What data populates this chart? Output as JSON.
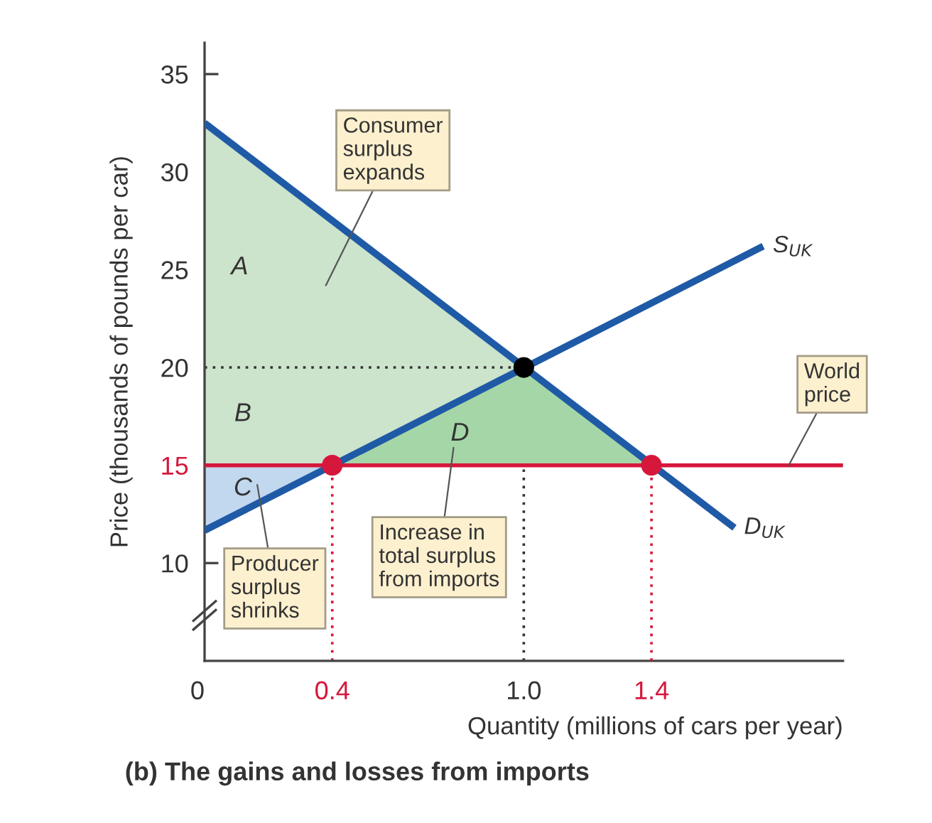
{
  "chart_data": {
    "type": "line",
    "title": "(b) The gains and losses from imports",
    "xlabel": "Quantity (millions of cars per year)",
    "ylabel": "Price (thousands of pounds per car)",
    "xlim": [
      0,
      2.0
    ],
    "ylim": [
      5,
      36.6
    ],
    "xticks": [
      0,
      0.4,
      {
        "value": 1.0,
        "label": "1.0"
      },
      1.4
    ],
    "yticks": [
      10,
      15,
      20,
      25,
      30,
      35
    ],
    "grid": false,
    "series": [
      {
        "type": "area",
        "color": "#cce3cc",
        "x": [
          0,
          1.4
        ],
        "values": [
          32.5,
          15
        ]
      },
      {
        "type": "area",
        "color": "#a5d6a7",
        "x": [
          0.4,
          1.0,
          1.4
        ],
        "values": [
          15,
          20,
          15
        ]
      },
      {
        "type": "area",
        "color": "#c2d8ee",
        "x": [
          0,
          0.4
        ],
        "values": [
          11.67,
          15
        ]
      },
      {
        "line_style": "dotted",
        "color": "#333333",
        "x": [
          0,
          1.0
        ],
        "values": [
          20,
          20
        ]
      },
      {
        "line_style": "dotted",
        "color": "#d6173c",
        "x": [
          0.4,
          0.4
        ],
        "values": [
          5,
          15
        ]
      },
      {
        "line_style": "dotted",
        "color": "#333333",
        "x": [
          1.0,
          1.0
        ],
        "values": [
          5,
          15
        ]
      },
      {
        "line_style": "dotted",
        "color": "#d6173c",
        "x": [
          1.4,
          1.4
        ],
        "values": [
          5,
          15
        ]
      },
      {
        "line_style": "solid",
        "name": "D$_{UK}$",
        "color": "#1f5aa6",
        "x": [
          0,
          1.66
        ],
        "values": [
          32.5,
          11.8
        ]
      },
      {
        "line_style": "solid",
        "name": "S$_{UK}$",
        "color": "#1f5aa6",
        "x": [
          0,
          1.75
        ],
        "values": [
          11.67,
          26.2
        ]
      },
      {
        "type": "scatter",
        "marker": "circle",
        "x": [
          1.0,
          0.4,
          1.4
        ],
        "values": [
          20,
          15,
          15
        ],
        "colors": [
          "#000000",
          "#d6173c",
          "#d6173c"
        ]
      }
    ],
    "ref_lines": [
      {
        "axis": "y",
        "value": 15,
        "label": "World\nprice",
        "color": "#d6173c"
      }
    ],
    "annotations": [
      "Consumer\nsurplus\nexpands",
      "Increase in\ntotal surplus\nfrom imports",
      "Producer\nsurplus\nshrinks",
      "A",
      "B",
      "C",
      "D"
    ]
  }
}
